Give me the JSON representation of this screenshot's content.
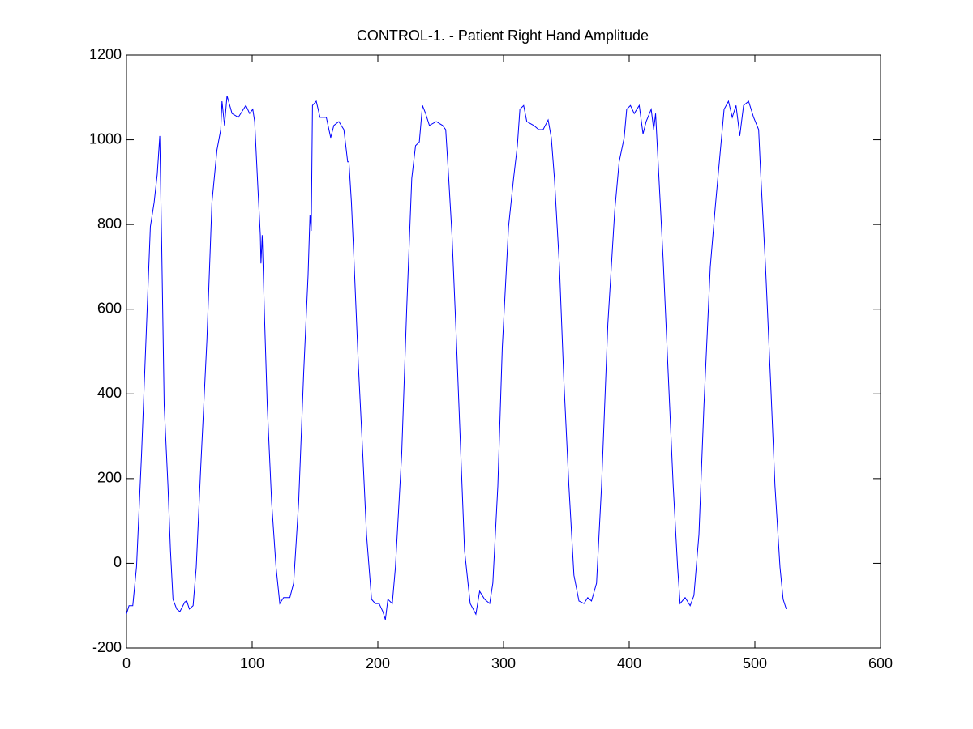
{
  "chart_data": {
    "type": "line",
    "title": "CONTROL-1. - Patient Right Hand Amplitude",
    "color": "#0000ff",
    "xlim": [
      0,
      600
    ],
    "xticks": [
      0,
      100,
      200,
      300,
      400,
      500,
      600
    ],
    "ylim": [
      -200,
      1200
    ],
    "yticks": [
      -200,
      0,
      200,
      400,
      600,
      800,
      1000,
      1200
    ],
    "grid": false,
    "x": [
      0,
      2,
      5,
      8,
      12,
      19,
      22,
      24.5,
      26.5,
      28,
      30,
      33,
      35,
      37,
      40,
      42.5,
      46.5,
      48,
      50,
      53,
      55.5,
      59,
      64,
      68,
      72,
      75,
      76,
      78,
      80,
      84,
      89,
      95,
      98,
      100.5,
      102,
      104.5,
      106.5,
      107,
      108,
      110,
      112,
      115.5,
      119,
      122,
      125,
      130,
      133,
      137,
      141,
      144.5,
      146,
      147,
      148,
      151,
      154,
      159,
      162.5,
      165,
      169,
      173,
      176,
      177,
      179,
      181,
      184.5,
      188,
      191,
      195,
      198,
      201,
      204,
      206,
      208,
      211.5,
      214,
      219,
      223,
      227,
      230,
      233,
      235.5,
      238,
      241,
      246.5,
      251.5,
      254,
      256,
      259,
      262.5,
      266,
      269,
      273.5,
      278,
      281,
      285,
      289,
      291.5,
      295.5,
      299,
      304,
      308,
      311,
      313,
      316,
      318.5,
      324,
      328,
      331.5,
      335.5,
      338,
      340.5,
      344.5,
      348,
      352,
      356,
      360,
      364,
      367,
      370,
      374,
      378,
      383,
      388.5,
      392,
      396,
      398,
      401,
      404,
      408,
      411,
      413.5,
      417.5,
      419.5,
      421,
      423,
      427,
      431,
      435,
      438.5,
      440.5,
      444.5,
      448.5,
      451.5,
      455.5,
      459.5,
      464.5,
      468.5,
      472,
      475.5,
      479,
      482,
      485,
      488,
      491,
      495,
      499,
      503,
      504.5,
      508.5,
      512.5,
      516,
      520,
      522.5,
      525
    ],
    "values": [
      -120,
      -100,
      -100,
      -8,
      259,
      795,
      852,
      919,
      1009,
      756,
      374,
      183,
      30,
      -85,
      -108,
      -114,
      -91,
      -89,
      -108,
      -100,
      -9,
      221,
      527,
      852,
      976,
      1024,
      1091,
      1034,
      1104,
      1062,
      1053,
      1081,
      1062,
      1072,
      1043,
      890,
      775,
      708,
      775,
      565,
      374,
      144,
      -9,
      -95,
      -81,
      -81,
      -47,
      144,
      450,
      680,
      823,
      785,
      1081,
      1091,
      1053,
      1053,
      1005,
      1034,
      1043,
      1024,
      948,
      948,
      852,
      718,
      469,
      259,
      68,
      -85,
      -95,
      -95,
      -114,
      -133,
      -85,
      -95,
      -9,
      259,
      603,
      909,
      986,
      995,
      1081,
      1062,
      1034,
      1043,
      1034,
      1024,
      928,
      775,
      527,
      259,
      30,
      -95,
      -120,
      -66,
      -85,
      -95,
      -47,
      183,
      508,
      795,
      909,
      986,
      1072,
      1081,
      1043,
      1034,
      1024,
      1024,
      1047,
      1005,
      909,
      699,
      431,
      183,
      -28,
      -89,
      -95,
      -81,
      -89,
      -47,
      183,
      565,
      833,
      948,
      1005,
      1072,
      1081,
      1062,
      1081,
      1014,
      1043,
      1072,
      1024,
      1062,
      948,
      718,
      450,
      183,
      -9,
      -95,
      -81,
      -100,
      -76,
      68,
      374,
      699,
      842,
      957,
      1072,
      1091,
      1053,
      1081,
      1009,
      1081,
      1091,
      1053,
      1024,
      928,
      699,
      431,
      183,
      -9,
      -85,
      -108
    ]
  }
}
